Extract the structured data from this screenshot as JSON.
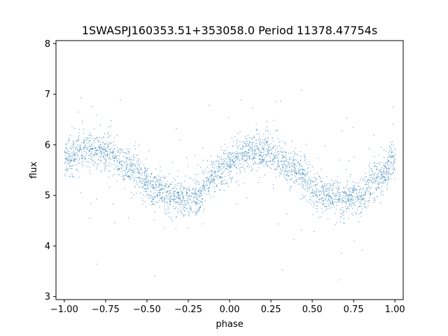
{
  "chart_data": {
    "type": "scatter",
    "title": "1SWASPJ160353.51+353058.0 Period 11378.47754s",
    "xlabel": "phase",
    "ylabel": "flux",
    "xlim": [
      -1.05,
      1.05
    ],
    "ylim": [
      2.94,
      8.06
    ],
    "xticks": [
      -1.0,
      -0.75,
      -0.5,
      -0.25,
      0.0,
      0.25,
      0.5,
      0.75,
      1.0
    ],
    "xtick_labels": [
      "−1.00",
      "−0.75",
      "−0.50",
      "−0.25",
      "0.00",
      "0.25",
      "0.50",
      "0.75",
      "1.00"
    ],
    "yticks": [
      3,
      4,
      5,
      6,
      7,
      8
    ],
    "ytick_labels": [
      "3",
      "4",
      "5",
      "6",
      "7",
      "8"
    ],
    "grid": false,
    "point_color": "#1f77b4",
    "model": {
      "description_values_phase": [
        -1.0,
        -0.85,
        -0.75,
        -0.6,
        -0.45,
        -0.3,
        -0.2,
        -0.1,
        0.0,
        0.15,
        0.25,
        0.4,
        0.55,
        0.7,
        0.8,
        0.9,
        1.0
      ],
      "description_values_flux": [
        5.75,
        5.88,
        5.85,
        5.55,
        5.1,
        4.92,
        5.0,
        5.35,
        5.7,
        5.88,
        5.82,
        5.5,
        5.05,
        4.93,
        5.05,
        5.35,
        5.7
      ]
    },
    "series": [
      {
        "x_range": [
          -1.0,
          1.0
        ],
        "density": "dense",
        "scatter_spread": 0.18
      }
    ]
  }
}
